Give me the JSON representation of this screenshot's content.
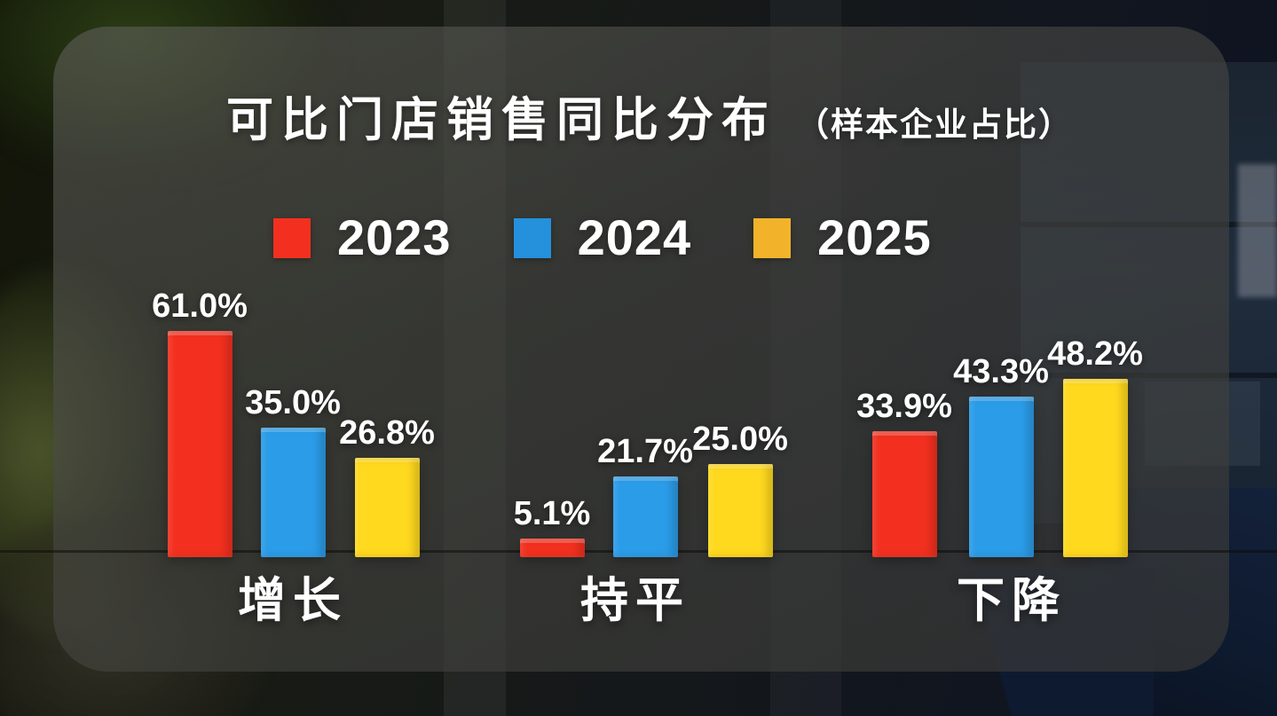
{
  "slide": {
    "title": "可比门店销售同比分布",
    "title_suffix": "（样本企业占比）"
  },
  "legend": {
    "position": "top",
    "items": [
      {
        "label": "2023",
        "color": "#F3301F"
      },
      {
        "label": "2024",
        "color": "#2590DC"
      },
      {
        "label": "2025",
        "color": "#F2B32B"
      }
    ]
  },
  "chart_data": {
    "type": "bar",
    "title": "可比门店销售同比分布",
    "subtitle": "样本企业占比",
    "categories": [
      "增长",
      "持平",
      "下降"
    ],
    "series": [
      {
        "name": "2023",
        "color": "#F3301F",
        "values": [
          61.0,
          5.1,
          33.9
        ]
      },
      {
        "name": "2024",
        "color": "#2B9CE8",
        "values": [
          35.0,
          21.7,
          43.3
        ]
      },
      {
        "name": "2025",
        "color": "#FFD91E",
        "values": [
          26.8,
          25.0,
          48.2
        ]
      }
    ],
    "data_labels": [
      "61.0%",
      "35.0%",
      "26.8%",
      "5.1%",
      "21.7%",
      "25.0%",
      "33.9%",
      "43.3%",
      "48.2%"
    ],
    "value_format": "percent_1dp",
    "grid": false,
    "axes_hidden": true,
    "legend_position": "top",
    "ylim": [
      0,
      65
    ],
    "text_color": "#FFFFFF"
  }
}
